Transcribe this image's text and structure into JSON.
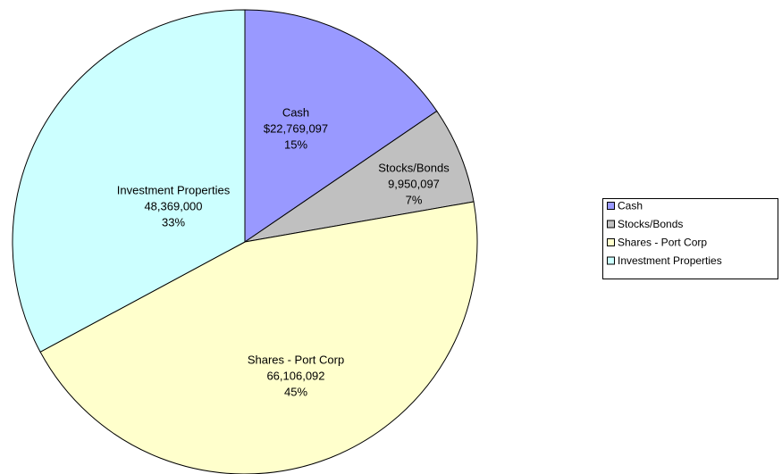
{
  "chart_data": {
    "type": "pie",
    "categories": [
      "Cash",
      "Stocks/Bonds",
      "Shares - Port Corp",
      "Investment Properties"
    ],
    "values": [
      22769097,
      9950097,
      66106092,
      48369000
    ],
    "value_labels": [
      "$22,769,097",
      "9,950,097",
      "66,106,092",
      "48,369,000"
    ],
    "percentages": [
      {
        "value": 15,
        "label": "15%"
      },
      {
        "value": 7,
        "label": "7%"
      },
      {
        "value": 45,
        "label": "45%"
      },
      {
        "value": 33,
        "label": "33%"
      }
    ],
    "colors": [
      "#9999ff",
      "#c0c0c0",
      "#ffffcc",
      "#ccffff"
    ],
    "legend": "right"
  }
}
